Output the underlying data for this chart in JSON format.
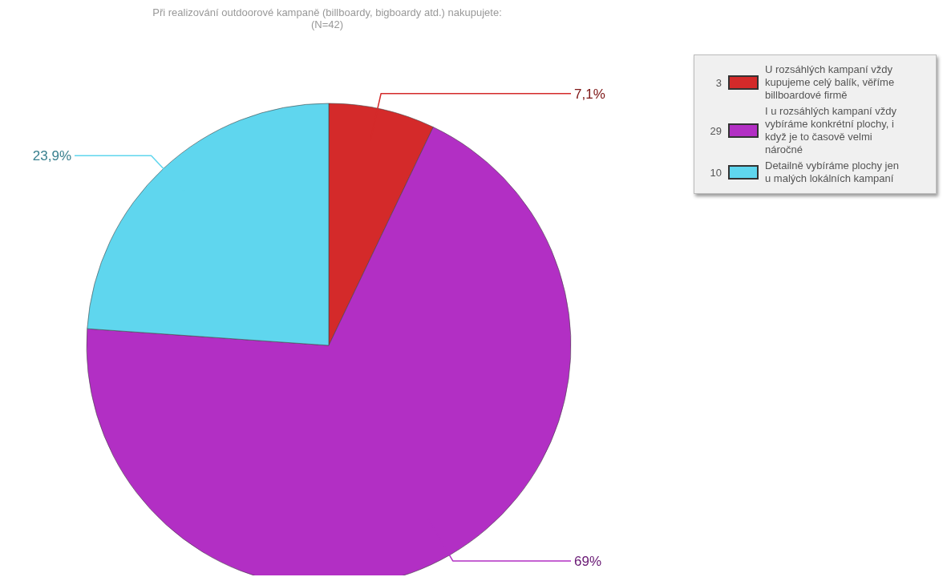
{
  "chart_data": {
    "type": "pie",
    "title": "Při realizování outdoorové kampaně (billboardy, bigboardy atd.) nakupujete:",
    "subtitle": "(N=42)",
    "categories": [
      "U rozsáhlých kampaní vždy kupujeme celý balík, věříme billboardové firmě",
      "I u rozsáhlých kampaní vždy vybíráme konkrétní plochy, i když je to časově velmi náročné",
      "Detailně vybíráme plochy jen u malých lokálních kampaní"
    ],
    "values": [
      7.1,
      69,
      23.9
    ],
    "annotations": [
      "3",
      "29",
      "10"
    ],
    "value_labels": [
      "7,1%",
      "69%",
      "23,9%"
    ],
    "colors": [
      "#d42a2a",
      "#b22fc4",
      "#5fd6ee"
    ],
    "legend": "top right"
  }
}
